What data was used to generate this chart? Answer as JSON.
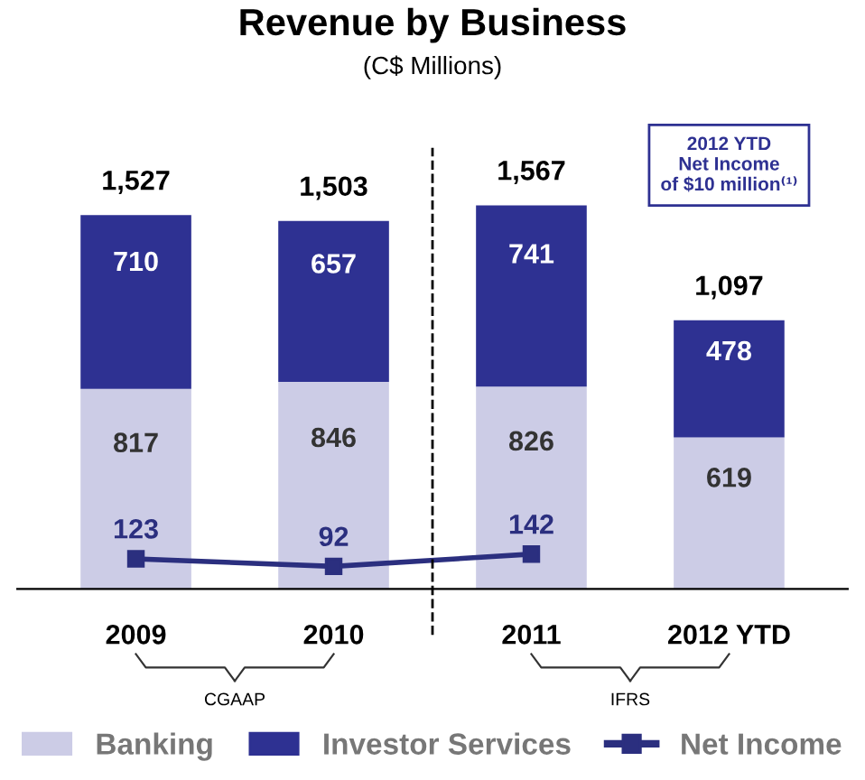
{
  "chart_data": {
    "type": "bar",
    "title": "Revenue by Business",
    "subtitle": "(C$ Millions)",
    "categories": [
      "2009",
      "2010",
      "2011",
      "2012 YTD"
    ],
    "stacked": true,
    "data_labels": true,
    "totals": [
      "1,527",
      "1,503",
      "1,567",
      "1,097"
    ],
    "series": [
      {
        "name": "Banking",
        "color": "#cccce6",
        "values": [
          817,
          846,
          826,
          619
        ]
      },
      {
        "name": "Investor Services",
        "color": "#2e3192",
        "values": [
          710,
          657,
          741,
          478
        ]
      },
      {
        "name": "Net Income",
        "type": "line",
        "color": "#2b2f7f",
        "marker": "square",
        "values": [
          123,
          92,
          142,
          null
        ]
      }
    ],
    "annotations": [
      "2012 YTD\nNet Income\nof $10 million⁽¹⁾",
      "CGAAP",
      "IFRS"
    ],
    "legend": "bottom",
    "grid": false
  }
}
